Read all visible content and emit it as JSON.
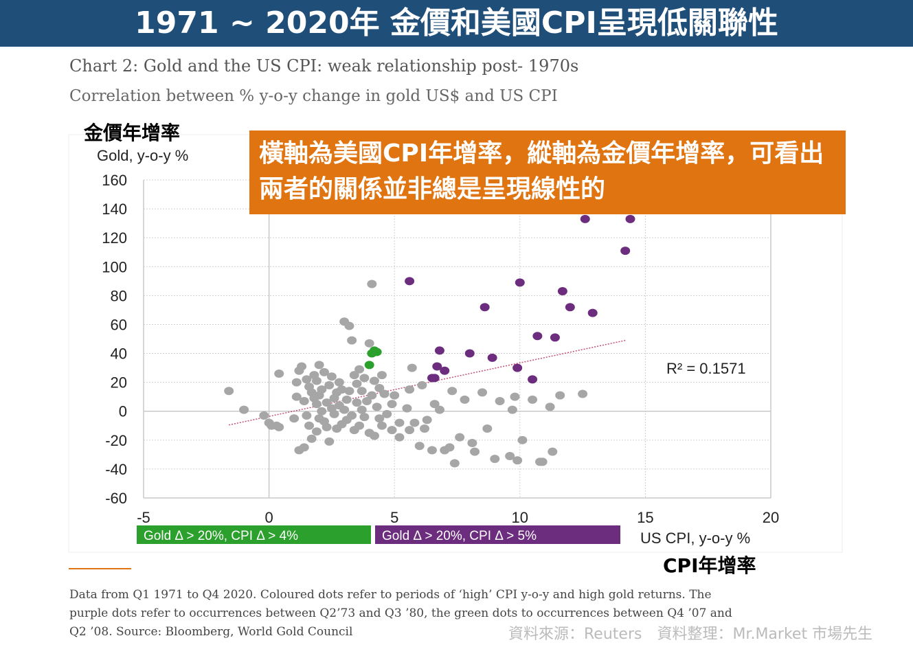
{
  "banner": {
    "title": "1971 ~ 2020年 金價和美國CPI呈現低關聯性"
  },
  "annotations": {
    "y_axis_cn": "金價年增率",
    "x_axis_cn": "CPI年增率",
    "callout": "橫軸為美國CPI年增率，縱軸為金價年增率，可看出兩者的關係並非總是呈現線性的"
  },
  "footnote": "Data from Q1 1971 to Q4 2020. Coloured dots refer to periods of ‘high’ CPI y-o-y and high gold returns. The purple dots refer to occurrences between Q2’73 and Q3 ’80, the green dots to occurrences between Q4 ’07 and Q2 ’08. Source: Bloomberg, World Gold Council",
  "source": "資料來源：Reuters　資料整理：Mr.Market 市場先生",
  "colors": {
    "banner": "#1f4e79",
    "callout": "#e07410",
    "grey": "#a6a6a6",
    "green": "#2ca02c",
    "purple": "#6c2d7e",
    "trend": "#c0506e"
  },
  "chart_data": {
    "type": "scatter",
    "title": "Chart 2: Gold and the US CPI: weak relationship post- 1970s",
    "subtitle": "Correlation between % y-o-y change in gold US$ and US CPI",
    "xlabel": "US CPI, y-o-y %",
    "ylabel": "Gold, y-o-y %",
    "xlim": [
      -5,
      20
    ],
    "ylim": [
      -60,
      160
    ],
    "xticks": [
      "-5",
      "0",
      "5",
      "10",
      "15",
      "20"
    ],
    "yticks": [
      "160",
      "140",
      "120",
      "100",
      "80",
      "60",
      "40",
      "20",
      "0",
      "-20",
      "-40",
      "-60"
    ],
    "grid": true,
    "r_squared_label": "R² = 0.1571",
    "trendline": {
      "x": [
        -1.6,
        14.2
      ],
      "y": [
        -9.5,
        49
      ]
    },
    "legend": [
      {
        "label": "Gold Δ > 20%, CPI Δ  > 4%",
        "color": "#2ca02c"
      },
      {
        "label": "Gold Δ > 20%, CPI Δ  > 5%",
        "color": "#6c2d7e"
      }
    ],
    "series": [
      {
        "color": "#2ca02c",
        "points": [
          [
            4.0,
            32
          ],
          [
            4.1,
            40
          ],
          [
            4.3,
            41
          ],
          [
            4.2,
            42
          ]
        ]
      },
      {
        "color": "#6c2d7e",
        "points": [
          [
            5.6,
            90
          ],
          [
            6.5,
            23
          ],
          [
            6.6,
            23
          ],
          [
            6.8,
            42
          ],
          [
            6.7,
            31
          ],
          [
            7.0,
            28
          ],
          [
            8.0,
            40
          ],
          [
            8.6,
            72
          ],
          [
            8.9,
            37
          ],
          [
            9.9,
            30
          ],
          [
            10.0,
            89
          ],
          [
            10.5,
            22
          ],
          [
            10.7,
            52
          ],
          [
            11.4,
            51
          ],
          [
            11.7,
            83
          ],
          [
            12.0,
            72
          ],
          [
            12.6,
            133
          ],
          [
            12.9,
            68
          ],
          [
            14.2,
            111
          ],
          [
            14.4,
            133
          ]
        ]
      },
      {
        "color": "#a6a6a6",
        "points": [
          [
            -1.6,
            14
          ],
          [
            -1.0,
            1
          ],
          [
            -0.2,
            -3
          ],
          [
            0.0,
            -8
          ],
          [
            0.1,
            -10
          ],
          [
            0.3,
            -10
          ],
          [
            0.4,
            -11
          ],
          [
            0.4,
            26
          ],
          [
            1.0,
            -5
          ],
          [
            1.1,
            10
          ],
          [
            1.1,
            20
          ],
          [
            1.2,
            28
          ],
          [
            1.2,
            -27
          ],
          [
            1.3,
            31
          ],
          [
            1.4,
            -25
          ],
          [
            1.4,
            7
          ],
          [
            1.5,
            22
          ],
          [
            1.5,
            -3
          ],
          [
            1.6,
            17
          ],
          [
            1.6,
            -10
          ],
          [
            1.7,
            13
          ],
          [
            1.7,
            -19
          ],
          [
            1.8,
            25
          ],
          [
            1.8,
            9
          ],
          [
            1.9,
            5
          ],
          [
            1.9,
            -14
          ],
          [
            1.9,
            21
          ],
          [
            2.0,
            32
          ],
          [
            2.0,
            -5
          ],
          [
            2.0,
            11
          ],
          [
            2.1,
            0
          ],
          [
            2.1,
            15
          ],
          [
            2.2,
            -7
          ],
          [
            2.2,
            27
          ],
          [
            2.3,
            6
          ],
          [
            2.3,
            -11
          ],
          [
            2.4,
            18
          ],
          [
            2.4,
            -21
          ],
          [
            2.5,
            2
          ],
          [
            2.5,
            24
          ],
          [
            2.6,
            -2
          ],
          [
            2.6,
            9
          ],
          [
            2.7,
            13
          ],
          [
            2.7,
            -12
          ],
          [
            2.8,
            4
          ],
          [
            2.8,
            20
          ],
          [
            2.9,
            -9
          ],
          [
            2.9,
            15
          ],
          [
            3.0,
            1
          ],
          [
            3.0,
            62
          ],
          [
            3.1,
            8
          ],
          [
            3.1,
            -6
          ],
          [
            3.2,
            59
          ],
          [
            3.2,
            14
          ],
          [
            3.3,
            49
          ],
          [
            3.3,
            -3
          ],
          [
            3.4,
            25
          ],
          [
            3.4,
            -13
          ],
          [
            3.5,
            19
          ],
          [
            3.5,
            6
          ],
          [
            3.6,
            29
          ],
          [
            3.6,
            -10
          ],
          [
            3.7,
            14
          ],
          [
            3.7,
            1
          ],
          [
            3.8,
            23
          ],
          [
            3.8,
            -4
          ],
          [
            3.9,
            7
          ],
          [
            4.0,
            47
          ],
          [
            4.0,
            -15
          ],
          [
            4.1,
            88
          ],
          [
            4.1,
            11
          ],
          [
            4.2,
            21
          ],
          [
            4.2,
            -17
          ],
          [
            4.3,
            3
          ],
          [
            4.4,
            -5
          ],
          [
            4.4,
            16
          ],
          [
            4.5,
            25
          ],
          [
            4.5,
            -10
          ],
          [
            4.6,
            12
          ],
          [
            4.7,
            -2
          ],
          [
            4.9,
            5
          ],
          [
            4.9,
            -13
          ],
          [
            5.0,
            11
          ],
          [
            5.2,
            -8
          ],
          [
            5.2,
            -18
          ],
          [
            5.5,
            2
          ],
          [
            5.6,
            -13
          ],
          [
            5.6,
            15
          ],
          [
            5.8,
            -8
          ],
          [
            6.0,
            -24
          ],
          [
            6.1,
            18
          ],
          [
            6.3,
            -6
          ],
          [
            6.5,
            -27
          ],
          [
            6.6,
            5
          ],
          [
            7.0,
            -27
          ],
          [
            7.3,
            14
          ],
          [
            7.6,
            -18
          ],
          [
            7.8,
            8
          ],
          [
            8.2,
            -28
          ],
          [
            8.5,
            13
          ],
          [
            8.7,
            -12
          ],
          [
            9.0,
            -33
          ],
          [
            9.2,
            7
          ],
          [
            9.7,
            1
          ],
          [
            9.8,
            10
          ],
          [
            10.1,
            -20
          ],
          [
            10.5,
            8
          ],
          [
            10.9,
            -35
          ],
          [
            11.2,
            3
          ],
          [
            11.3,
            -28
          ],
          [
            11.6,
            11
          ],
          [
            12.5,
            12
          ],
          [
            5.7,
            30
          ],
          [
            6.2,
            -12
          ],
          [
            6.8,
            1
          ],
          [
            7.2,
            -25
          ],
          [
            7.4,
            -36
          ],
          [
            8.1,
            -22
          ],
          [
            9.6,
            -31
          ],
          [
            9.9,
            -34
          ],
          [
            10.8,
            -35
          ]
        ]
      }
    ]
  }
}
